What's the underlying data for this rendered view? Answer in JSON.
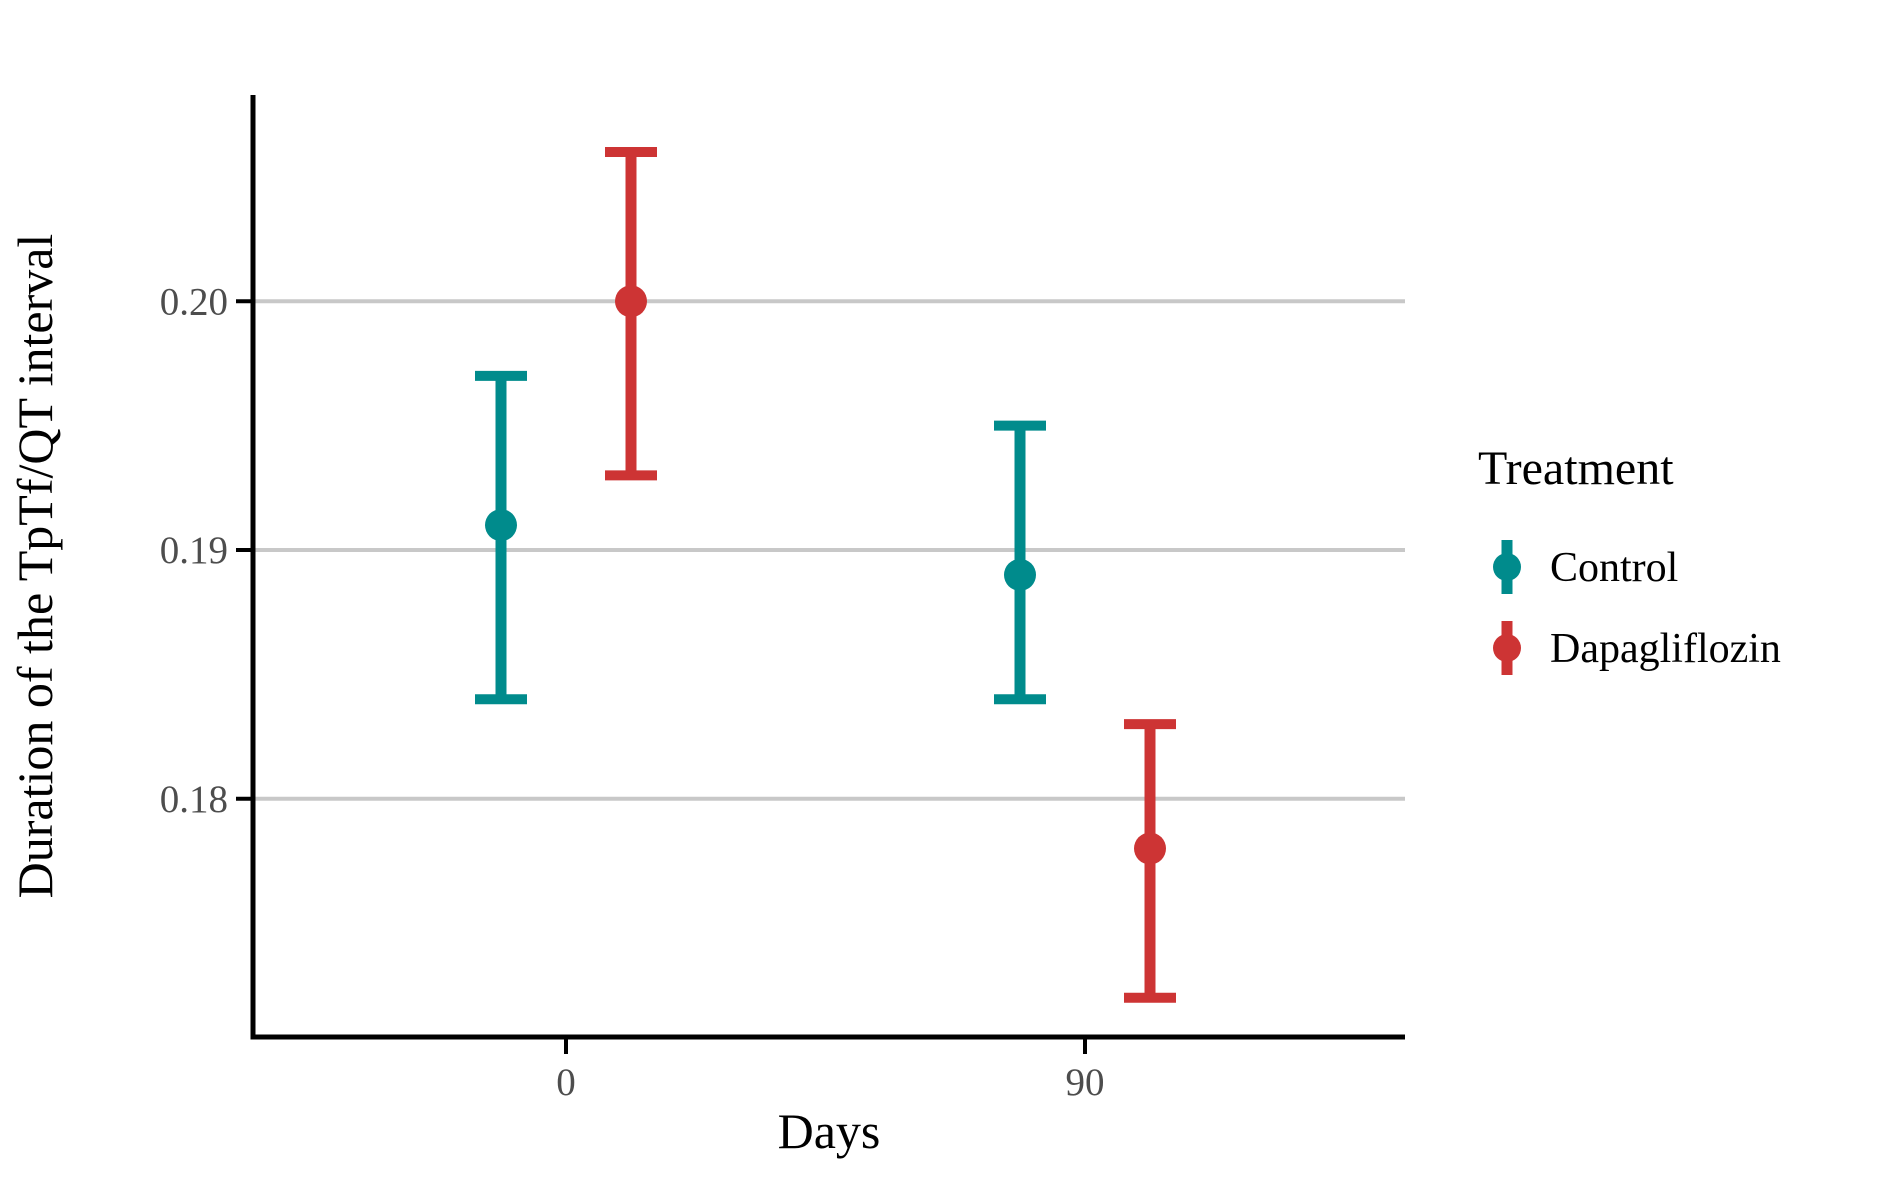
{
  "figure": {
    "background": "#FFFFFF"
  },
  "chart_data": {
    "type": "pointrange",
    "title": "",
    "xlabel": "Days",
    "ylabel": "Duration of the TpTf/QT interval",
    "x_tick_labels": [
      "0",
      "90"
    ],
    "y_ticks": [
      {
        "value": 0.2,
        "label": "0.20"
      },
      {
        "value": 0.19,
        "label": "0.19"
      },
      {
        "value": 0.18,
        "label": "0.18"
      }
    ],
    "ylim": [
      0.1704,
      0.2085
    ],
    "grid": "horizontal-major-only",
    "legend": {
      "title": "Treatment",
      "position": "right",
      "entries": [
        {
          "label": "Control",
          "color": "#008B8C"
        },
        {
          "label": "Dapagliflozin",
          "color": "#CD3434"
        }
      ]
    },
    "series": [
      {
        "name": "Control",
        "color": "#008B8C",
        "points": [
          {
            "x": "0",
            "mean": 0.191,
            "lower": 0.184,
            "upper": 0.197
          },
          {
            "x": "90",
            "mean": 0.189,
            "lower": 0.184,
            "upper": 0.195
          }
        ]
      },
      {
        "name": "Dapagliflozin",
        "color": "#CD3434",
        "points": [
          {
            "x": "0",
            "mean": 0.2,
            "lower": 0.193,
            "upper": 0.206
          },
          {
            "x": "90",
            "mean": 0.178,
            "lower": 0.172,
            "upper": 0.183
          }
        ]
      }
    ],
    "colors": {
      "gridline": "#C8C8C8",
      "axis_line": "#000000",
      "tick_label": "#4D4D4D",
      "title_text": "#000000"
    }
  }
}
